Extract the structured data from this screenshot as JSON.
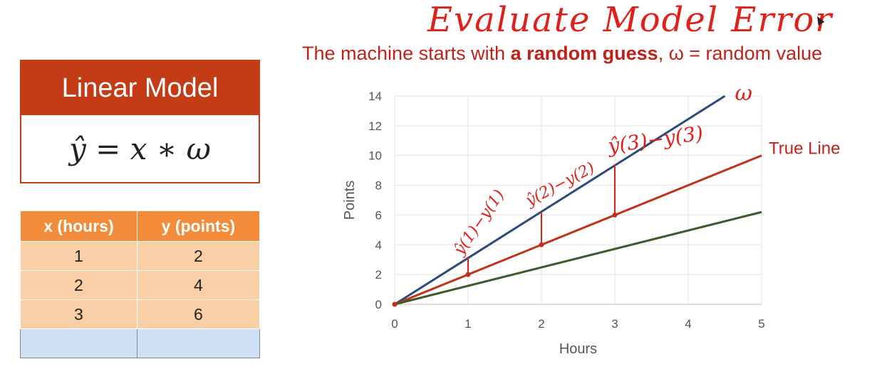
{
  "annotation": {
    "title": "Evaluate Model Error",
    "subtitle_prefix": "The machine starts with ",
    "subtitle_bold": "a random guess",
    "subtitle_suffix": ", ω = random value",
    "omega_label": "ω",
    "error_labels": [
      "ŷ(1)−y(1)",
      "ŷ(2)−y(2)",
      "ŷ(3)−y(3)"
    ]
  },
  "model": {
    "header": "Linear Model",
    "formula": "ŷ = x ∗ ω"
  },
  "table": {
    "headers": [
      "x (hours)",
      "y (points)"
    ],
    "rows": [
      [
        "1",
        "2"
      ],
      [
        "2",
        "4"
      ],
      [
        "3",
        "6"
      ]
    ]
  },
  "chart_data": {
    "type": "line",
    "xlabel": "Hours",
    "ylabel": "Points",
    "xlim": [
      0,
      5
    ],
    "ylim": [
      0,
      14
    ],
    "xticks": [
      "0",
      "1",
      "2",
      "3",
      "4",
      "5"
    ],
    "yticks": [
      "0",
      "2",
      "4",
      "6",
      "8",
      "10",
      "12",
      "14"
    ],
    "grid": true,
    "series": [
      {
        "name": "ω",
        "color": "#2a4a7a",
        "x": [
          0,
          4.5
        ],
        "y": [
          0,
          14
        ]
      },
      {
        "name": "True Line",
        "color": "#c0321a",
        "x": [
          0,
          5
        ],
        "y": [
          0,
          10
        ]
      },
      {
        "name": "",
        "color": "#3d5a2a",
        "x": [
          0,
          5
        ],
        "y": [
          0,
          6.2
        ]
      }
    ],
    "points": {
      "x": [
        0,
        1,
        2,
        3
      ],
      "y": [
        0,
        2,
        4,
        6
      ],
      "color": "#c0321a"
    },
    "error_segments": [
      {
        "x": 1,
        "y_from": 2,
        "y_to": 3.1
      },
      {
        "x": 2,
        "y_from": 4,
        "y_to": 6.2
      },
      {
        "x": 3,
        "y_from": 6,
        "y_to": 9.4
      }
    ]
  }
}
